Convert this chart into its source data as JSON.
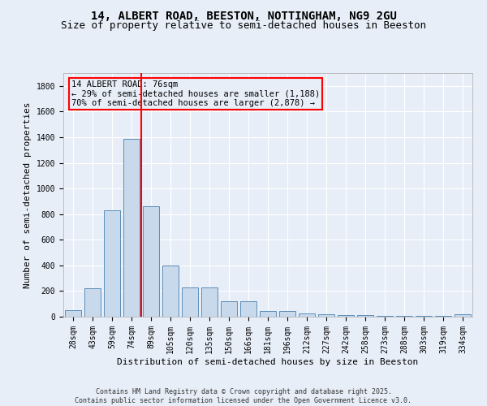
{
  "title": "14, ALBERT ROAD, BEESTON, NOTTINGHAM, NG9 2GU",
  "subtitle": "Size of property relative to semi-detached houses in Beeston",
  "xlabel": "Distribution of semi-detached houses by size in Beeston",
  "ylabel": "Number of semi-detached properties",
  "categories": [
    "28sqm",
    "43sqm",
    "59sqm",
    "74sqm",
    "89sqm",
    "105sqm",
    "120sqm",
    "135sqm",
    "150sqm",
    "166sqm",
    "181sqm",
    "196sqm",
    "212sqm",
    "227sqm",
    "242sqm",
    "258sqm",
    "273sqm",
    "288sqm",
    "303sqm",
    "319sqm",
    "334sqm"
  ],
  "values": [
    50,
    220,
    830,
    1390,
    860,
    400,
    225,
    225,
    120,
    120,
    45,
    45,
    25,
    20,
    15,
    15,
    5,
    5,
    5,
    5,
    20
  ],
  "bar_color": "#c9d9ec",
  "bar_edge_color": "#5b8db8",
  "vline_x": 3.5,
  "vline_color": "red",
  "ylim": [
    0,
    1900
  ],
  "yticks": [
    0,
    200,
    400,
    600,
    800,
    1000,
    1200,
    1400,
    1600,
    1800
  ],
  "annotation_title": "14 ALBERT ROAD: 76sqm",
  "annotation_line1": "← 29% of semi-detached houses are smaller (1,188)",
  "annotation_line2": "70% of semi-detached houses are larger (2,878) →",
  "annotation_box_color": "red",
  "background_color": "#e8eef8",
  "grid_color": "#ffffff",
  "footer_line1": "Contains HM Land Registry data © Crown copyright and database right 2025.",
  "footer_line2": "Contains public sector information licensed under the Open Government Licence v3.0.",
  "title_fontsize": 10,
  "subtitle_fontsize": 9,
  "axis_label_fontsize": 8,
  "tick_fontsize": 7,
  "annotation_fontsize": 7.5
}
